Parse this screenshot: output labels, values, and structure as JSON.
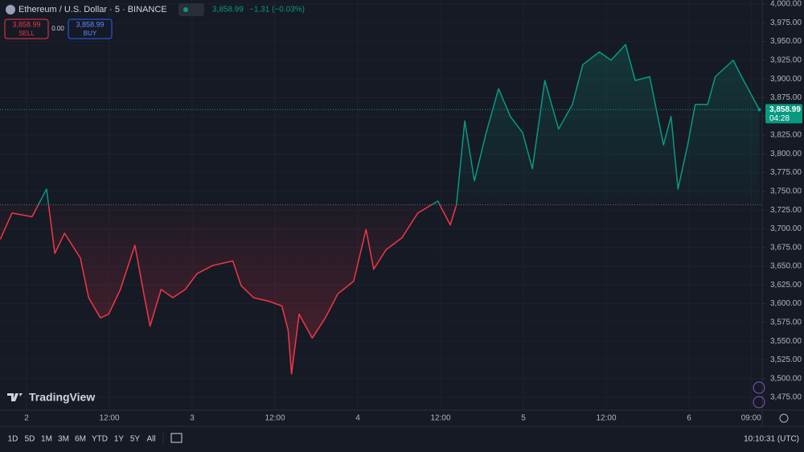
{
  "header": {
    "symbol": "Ethereum / U.S. Dollar · 5 · BINANCE",
    "price": "3,858.99",
    "change": "−1.31 (−0.03%)",
    "sell_price": "3,858.99",
    "sell": "SELL",
    "spread": "0.00",
    "buy_price": "3,858.99",
    "buy": "BUY"
  },
  "logo": "TradingView",
  "toolbar": {
    "ranges": [
      "1D",
      "5D",
      "1M",
      "3M",
      "6M",
      "YTD",
      "1Y",
      "5Y",
      "All"
    ],
    "clock": "10:10:31 (UTC)"
  },
  "chart_data": {
    "type": "line",
    "x": [
      -3.8,
      -2.1,
      0.8,
      2.9,
      4.1,
      5.5,
      7.8,
      9,
      10.7,
      11.9,
      13.6,
      15.7,
      17.1,
      17.9,
      19.5,
      21.2,
      23,
      24.7,
      27,
      29.9,
      31.1,
      32.9,
      35.2,
      37,
      37.9,
      38.4,
      39.5,
      41.4,
      43.3,
      45.1,
      47.4,
      49.2,
      50.3,
      52.1,
      54.4,
      56.7,
      59.6,
      61.4,
      62.3,
      63.5,
      64.9,
      66.6,
      68.4,
      70.1,
      71.9,
      73.3,
      75.1,
      77.1,
      79.1,
      80.6,
      83,
      84.7,
      86.8,
      88.2,
      90.3,
      92.3,
      93.4,
      94.4,
      95.8,
      96.9,
      98.7,
      99.8,
      102.4,
      103.9,
      106.2
    ],
    "series": [
      {
        "name": "ETHUSD",
        "values": [
          3686,
          3721,
          3716,
          3753,
          3667,
          3694,
          3661,
          3608,
          3581,
          3586,
          3619,
          3678,
          3608,
          3570,
          3619,
          3608,
          3619,
          3640,
          3651,
          3657,
          3624,
          3608,
          3603,
          3597,
          3565,
          3506,
          3586,
          3554,
          3581,
          3613,
          3630,
          3699,
          3646,
          3672,
          3688,
          3721,
          3737,
          3705,
          3732,
          3844,
          3764,
          3828,
          3887,
          3850,
          3828,
          3780,
          3898,
          3833,
          3866,
          3919,
          3936,
          3925,
          3946,
          3898,
          3903,
          3812,
          3850,
          3753,
          3812,
          3866,
          3866,
          3903,
          3925,
          3898,
          3858.99
        ]
      }
    ],
    "baseline": 3732,
    "color_up": "#089981",
    "color_down": "#f23645",
    "price": 3858.99,
    "price_label": "3,858.99",
    "countdown": "04:28",
    "xlim": [
      -3.845,
      106.6
    ],
    "xticks": [
      {
        "value": 0,
        "label": "2"
      },
      {
        "value": 12,
        "label": "12:00"
      },
      {
        "value": 24,
        "label": "3"
      },
      {
        "value": 36,
        "label": "12:00"
      },
      {
        "value": 48,
        "label": "4"
      },
      {
        "value": 60,
        "label": "12:00"
      },
      {
        "value": 72,
        "label": "5"
      },
      {
        "value": 84,
        "label": "12:00"
      },
      {
        "value": 96,
        "label": "6"
      },
      {
        "value": 105,
        "label": "09:00"
      }
    ],
    "ylim": [
      3457.8,
      4005.4
    ],
    "yticks": [
      {
        "value": 3475,
        "label": "3,475.00"
      },
      {
        "value": 3500,
        "label": "3,500.00"
      },
      {
        "value": 3525,
        "label": "3,525.00"
      },
      {
        "value": 3550,
        "label": "3,550.00"
      },
      {
        "value": 3575,
        "label": "3,575.00"
      },
      {
        "value": 3600,
        "label": "3,600.00"
      },
      {
        "value": 3625,
        "label": "3,625.00"
      },
      {
        "value": 3650,
        "label": "3,650.00"
      },
      {
        "value": 3675,
        "label": "3,675.00"
      },
      {
        "value": 3700,
        "label": "3,700.00"
      },
      {
        "value": 3725,
        "label": "3,725.00"
      },
      {
        "value": 3750,
        "label": "3,750.00"
      },
      {
        "value": 3775,
        "label": "3,775.00"
      },
      {
        "value": 3800,
        "label": "3,800.00"
      },
      {
        "value": 3825,
        "label": "3,825.00"
      },
      {
        "value": 3850,
        "label": "3,850.00"
      },
      {
        "value": 3875,
        "label": "3,875.00"
      },
      {
        "value": 3900,
        "label": "3,900.00"
      },
      {
        "value": 3925,
        "label": "3,925.00"
      },
      {
        "value": 3950,
        "label": "3,950.00"
      },
      {
        "value": 3975,
        "label": "3,975.00"
      },
      {
        "value": 4000,
        "label": "4,000.00"
      }
    ]
  }
}
